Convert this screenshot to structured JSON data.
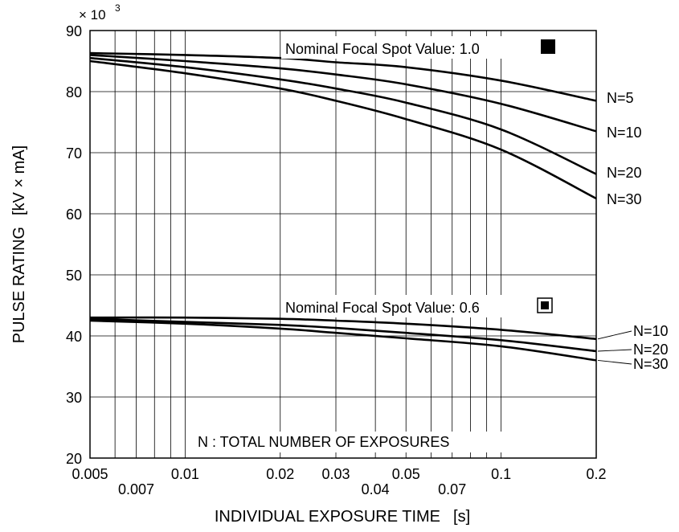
{
  "chart_data": {
    "type": "line",
    "xlabel": "INDIVIDUAL EXPOSURE TIME",
    "xunit": "[s]",
    "ylabel": "PULSE RATING",
    "yunit": "[kV × mA]",
    "y_multiplier": "× 10",
    "y_multiplier_exp": "3",
    "x_scale": "log",
    "xlim": [
      0.005,
      0.2
    ],
    "ylim": [
      20,
      90
    ],
    "grid": true,
    "x_ticks_upper": [
      {
        "value": 0.005,
        "label": "0.005"
      },
      {
        "value": 0.01,
        "label": "0.01"
      },
      {
        "value": 0.02,
        "label": "0.02"
      },
      {
        "value": 0.03,
        "label": "0.03"
      },
      {
        "value": 0.05,
        "label": "0.05"
      },
      {
        "value": 0.1,
        "label": "0.1"
      },
      {
        "value": 0.2,
        "label": "0.2"
      }
    ],
    "x_ticks_lower": [
      {
        "value": 0.007,
        "label": "0.007"
      },
      {
        "value": 0.04,
        "label": "0.04"
      },
      {
        "value": 0.07,
        "label": "0.07"
      }
    ],
    "x_gridlines": [
      0.006,
      0.007,
      0.008,
      0.009,
      0.01,
      0.02,
      0.03,
      0.04,
      0.05,
      0.06,
      0.07,
      0.08,
      0.09,
      0.1
    ],
    "y_ticks": [
      20,
      30,
      40,
      50,
      60,
      70,
      80,
      90
    ],
    "groups": [
      {
        "title": "Nominal Focal Spot Value: 1.0",
        "symbol": "filled-square",
        "series": [
          {
            "name": "N=5",
            "x": [
              0.005,
              0.01,
              0.02,
              0.03,
              0.05,
              0.1,
              0.2
            ],
            "y": [
              86.3,
              86.0,
              85.5,
              84.8,
              84.0,
              81.8,
              78.5
            ]
          },
          {
            "name": "N=10",
            "x": [
              0.005,
              0.01,
              0.02,
              0.03,
              0.05,
              0.1,
              0.2
            ],
            "y": [
              86.0,
              85.0,
              83.8,
              82.8,
              81.2,
              78.0,
              73.5
            ]
          },
          {
            "name": "N=20",
            "x": [
              0.005,
              0.01,
              0.02,
              0.03,
              0.05,
              0.1,
              0.2
            ],
            "y": [
              85.5,
              84.0,
              82.0,
              80.5,
              78.2,
              73.8,
              66.5
            ]
          },
          {
            "name": "N=30",
            "x": [
              0.005,
              0.01,
              0.02,
              0.03,
              0.05,
              0.1,
              0.2
            ],
            "y": [
              85.0,
              83.0,
              80.5,
              78.5,
              75.5,
              70.5,
              62.5
            ]
          }
        ]
      },
      {
        "title": "Nominal Focal Spot Value: 0.6",
        "symbol": "boxed-square",
        "series": [
          {
            "name": "N=10",
            "x": [
              0.005,
              0.01,
              0.02,
              0.03,
              0.05,
              0.1,
              0.2
            ],
            "y": [
              43.0,
              43.0,
              42.8,
              42.5,
              42.0,
              41.0,
              39.5
            ]
          },
          {
            "name": "N=20",
            "x": [
              0.005,
              0.01,
              0.02,
              0.03,
              0.05,
              0.1,
              0.2
            ],
            "y": [
              42.8,
              42.3,
              41.8,
              41.3,
              40.5,
              39.3,
              37.5
            ]
          },
          {
            "name": "N=30",
            "x": [
              0.005,
              0.01,
              0.02,
              0.03,
              0.05,
              0.1,
              0.2
            ],
            "y": [
              42.5,
              42.0,
              41.2,
              40.5,
              39.6,
              38.3,
              36.0
            ]
          }
        ]
      }
    ],
    "note": "N : TOTAL NUMBER OF EXPOSURES"
  }
}
